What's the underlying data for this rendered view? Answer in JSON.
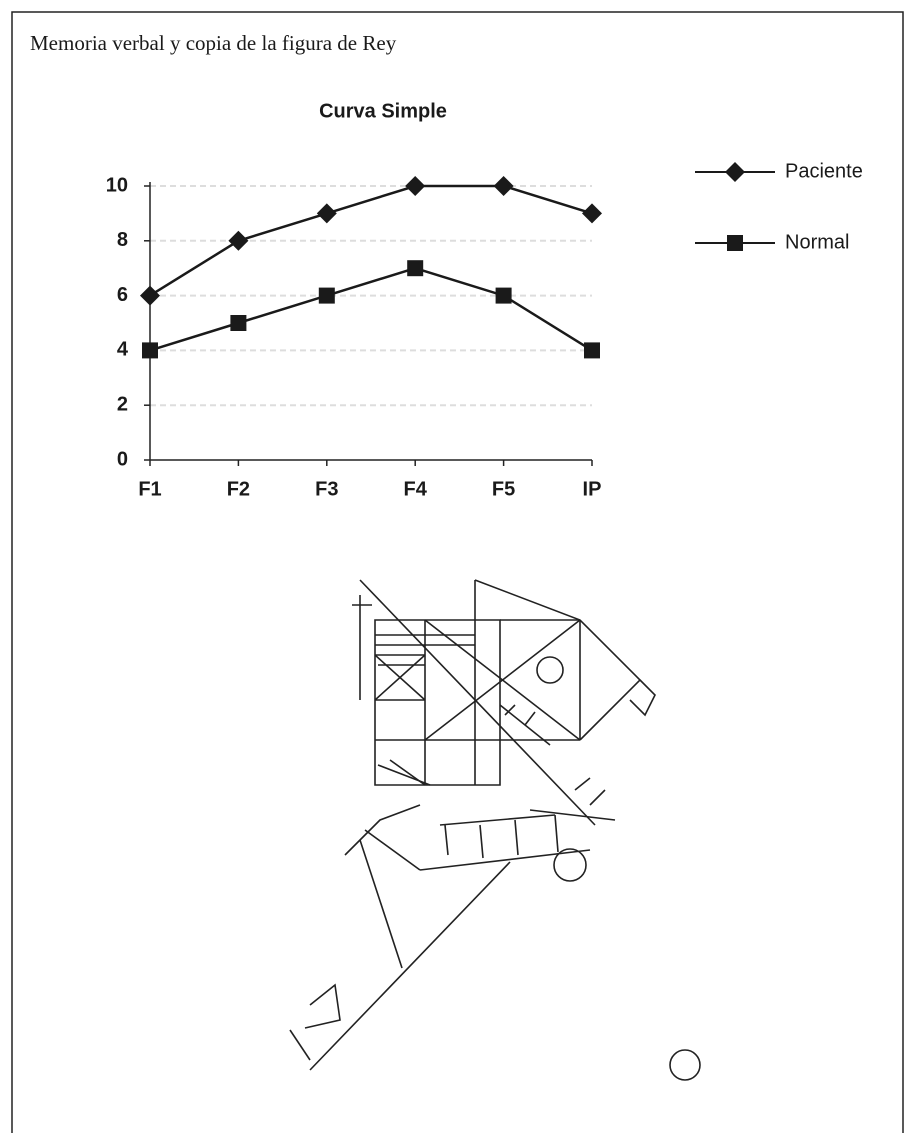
{
  "header": {
    "title": "Memoria verbal y copia de la figura de Rey"
  },
  "chart_data": {
    "type": "line",
    "title": "Curva Simple",
    "categories": [
      "F1",
      "F2",
      "F3",
      "F4",
      "F5",
      "IP"
    ],
    "series": [
      {
        "name": "Paciente",
        "color": "#1a1a1a",
        "marker": "diamond",
        "values": [
          6,
          8,
          9,
          10,
          10,
          9
        ]
      },
      {
        "name": "Normal",
        "color": "#1a1a1a",
        "marker": "square",
        "values": [
          4,
          5,
          6,
          7,
          6,
          4
        ]
      }
    ],
    "ylim": [
      0,
      10
    ],
    "yticks": [
      0,
      2,
      4,
      6,
      8,
      10
    ],
    "grid": true,
    "legend": "right"
  }
}
